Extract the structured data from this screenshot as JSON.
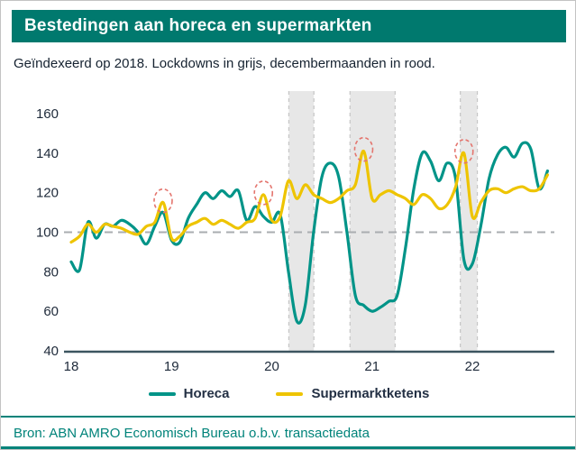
{
  "header": {
    "title": "Bestedingen aan horeca en supermarkten",
    "bar_color": "#00796e"
  },
  "subtitle": "Geïndexeerd op 2018. Lockdowns in grijs, decembermaanden in rood.",
  "footer": {
    "source": "Bron: ABN AMRO Economisch Bureau o.b.v. transactiedata"
  },
  "chart_data": {
    "type": "line",
    "title": "Bestedingen aan horeca en supermarkten",
    "subtitle": "Geïndexeerd op 2018. Lockdowns in grijs, decembermaanden in rood.",
    "unit": "index (2018 = 100)",
    "x_range": {
      "start": "2018-01",
      "end": "2022-10",
      "interval": "monthly"
    },
    "ylim": [
      40,
      170
    ],
    "yticks": [
      40,
      60,
      80,
      100,
      120,
      140,
      160
    ],
    "baseline": 100,
    "xticks": [
      {
        "year": 2018,
        "label": "18"
      },
      {
        "year": 2019,
        "label": "19"
      },
      {
        "year": 2020,
        "label": "20"
      },
      {
        "year": 2021,
        "label": "21"
      },
      {
        "year": 2022,
        "label": "22"
      }
    ],
    "series": [
      {
        "name": "Horeca",
        "color": "#009488",
        "values": [
          85,
          81,
          105,
          97,
          104,
          103,
          106,
          104,
          100,
          94,
          103,
          110,
          96,
          95,
          107,
          114,
          120,
          117,
          121,
          118,
          121,
          106,
          113,
          108,
          105,
          109,
          80,
          55,
          63,
          100,
          128,
          135,
          128,
          100,
          68,
          63,
          60,
          62,
          65,
          68,
          92,
          122,
          140,
          136,
          126,
          135,
          127,
          86,
          84,
          103,
          127,
          139,
          143,
          138,
          145,
          142,
          122,
          131
        ]
      },
      {
        "name": "Supermarktketens",
        "color": "#eec400",
        "values": [
          95,
          98,
          104,
          100,
          104,
          103,
          102,
          100,
          99,
          103,
          105,
          115,
          97,
          98,
          103,
          105,
          107,
          104,
          106,
          104,
          102,
          105,
          107,
          119,
          106,
          108,
          126,
          117,
          124,
          119,
          117,
          115,
          117,
          121,
          124,
          141,
          117,
          119,
          121,
          119,
          117,
          114,
          119,
          117,
          112,
          114,
          123,
          140,
          108,
          115,
          121,
          122,
          120,
          122,
          123,
          121,
          122,
          129
        ]
      }
    ],
    "lockdown_bands": [
      {
        "from": 2020.17,
        "to": 2020.42
      },
      {
        "from": 2020.78,
        "to": 2021.23
      },
      {
        "from": 2021.88,
        "to": 2022.05
      }
    ],
    "december_markers": {
      "series": "Supermarktketens",
      "months": [
        "2018-12",
        "2019-12",
        "2020-12",
        "2021-12"
      ],
      "month_indices": [
        11,
        23,
        35,
        47
      ],
      "color": "#e4756e"
    },
    "colors": {
      "lockdown_fill": "#e7e7e7",
      "lockdown_edge": "#c6c6c6",
      "baseline": "#aaadb0",
      "axis": "#3c5560",
      "tick_label": "#1e2a3a"
    },
    "grid": false,
    "legend_position": "bottom"
  }
}
